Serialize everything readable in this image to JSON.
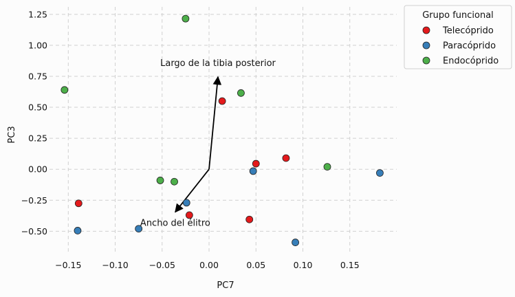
{
  "chart_data": {
    "type": "scatter",
    "xlabel": "PC7",
    "ylabel": "PC3",
    "xlim": [
      -0.17,
      0.2
    ],
    "ylim": [
      -0.67,
      1.31
    ],
    "xticks": [
      -0.15,
      -0.1,
      -0.05,
      0.0,
      0.05,
      0.1,
      0.15
    ],
    "xtick_labels": [
      "−0.15",
      "−0.10",
      "−0.05",
      "0.00",
      "0.05",
      "0.10",
      "0.15"
    ],
    "yticks": [
      -0.5,
      -0.25,
      0.0,
      0.25,
      0.5,
      0.75,
      1.0,
      1.25
    ],
    "ytick_labels": [
      "−0.50",
      "−0.25",
      "0.00",
      "0.25",
      "0.50",
      "0.75",
      "1.00",
      "1.25"
    ],
    "grid": true,
    "legend": {
      "title": "Grupo funcional",
      "placement": "outside-top-right"
    },
    "series": [
      {
        "name": "Telecóprido",
        "color": "#e41a1c",
        "points": [
          {
            "x": 0.014,
            "y": 0.55
          },
          {
            "x": 0.05,
            "y": 0.045
          },
          {
            "x": 0.082,
            "y": 0.09
          },
          {
            "x": 0.043,
            "y": -0.405
          },
          {
            "x": -0.139,
            "y": -0.275
          },
          {
            "x": -0.021,
            "y": -0.37
          }
        ]
      },
      {
        "name": "Paracóprido",
        "color": "#377eb8",
        "points": [
          {
            "x": 0.047,
            "y": -0.015
          },
          {
            "x": 0.182,
            "y": -0.03
          },
          {
            "x": 0.092,
            "y": -0.59
          },
          {
            "x": -0.024,
            "y": -0.27
          },
          {
            "x": -0.075,
            "y": -0.48
          },
          {
            "x": -0.14,
            "y": -0.495
          }
        ]
      },
      {
        "name": "Endocóprido",
        "color": "#4daf4a",
        "points": [
          {
            "x": -0.025,
            "y": 1.215
          },
          {
            "x": -0.154,
            "y": 0.64
          },
          {
            "x": 0.034,
            "y": 0.615
          },
          {
            "x": 0.126,
            "y": 0.02
          },
          {
            "x": -0.052,
            "y": -0.09
          },
          {
            "x": -0.037,
            "y": -0.1
          }
        ]
      }
    ],
    "arrows": [
      {
        "label": "Largo de la tibia posterior",
        "x": 0.0095,
        "y": 0.745
      },
      {
        "label": "Ancho del élitro",
        "x": -0.036,
        "y": -0.345
      }
    ]
  }
}
